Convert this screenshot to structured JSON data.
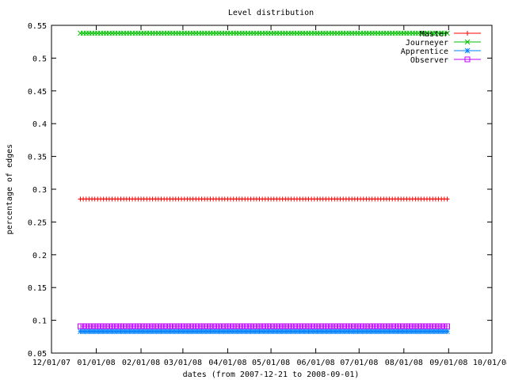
{
  "chart_data": {
    "type": "line",
    "title": "Level distribution",
    "xlabel": "dates (from 2007-12-21 to 2008-09-01)",
    "ylabel": "percentage of edges",
    "x_ticks": [
      "12/01/07",
      "01/01/08",
      "02/01/08",
      "03/01/08",
      "04/01/08",
      "05/01/08",
      "06/01/08",
      "07/01/08",
      "08/01/08",
      "09/01/08",
      "10/01/08"
    ],
    "y_ticks": [
      "0.05",
      "0.1",
      "0.15",
      "0.2",
      "0.25",
      "0.3",
      "0.35",
      "0.4",
      "0.45",
      "0.5",
      "0.55"
    ],
    "xlim": [
      "2007-12-01",
      "2008-10-01"
    ],
    "ylim": [
      0.05,
      0.55
    ],
    "date_range": [
      "2007-12-21",
      "2008-09-01"
    ],
    "legend_position": "top-right",
    "series": [
      {
        "name": "Master",
        "value": 0.285,
        "color": "#ff0000",
        "marker": "plus"
      },
      {
        "name": "Journeyer",
        "value": 0.538,
        "color": "#00c000",
        "marker": "cross"
      },
      {
        "name": "Apprentice",
        "value": 0.083,
        "color": "#0080ff",
        "marker": "star"
      },
      {
        "name": "Observer",
        "value": 0.091,
        "color": "#c000ff",
        "marker": "square"
      }
    ]
  }
}
